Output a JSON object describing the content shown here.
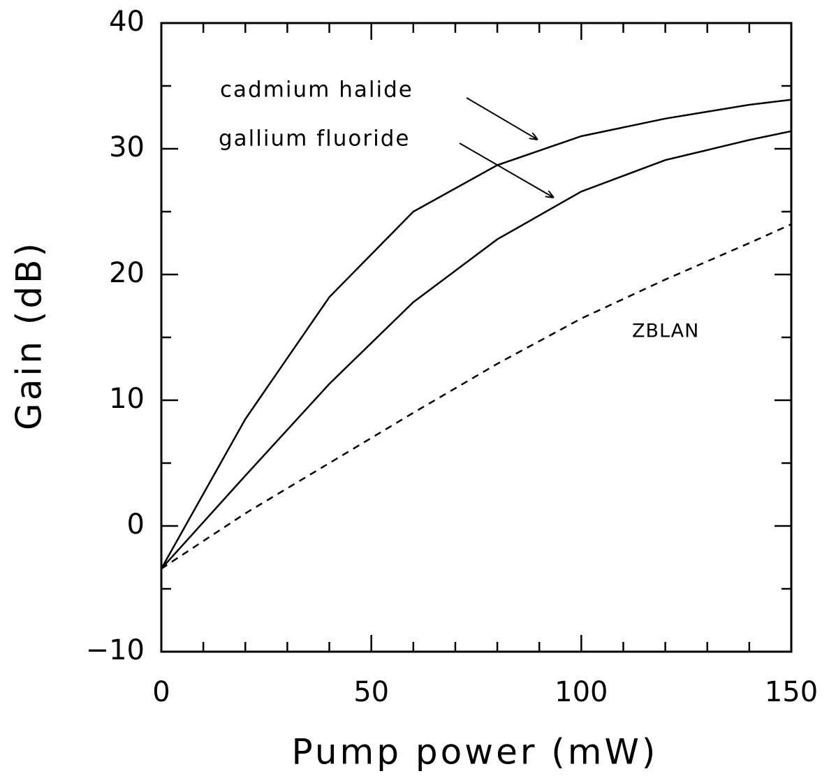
{
  "chart_data": {
    "type": "line",
    "xlabel": "Pump power (mW)",
    "ylabel": "Gain (dB)",
    "x": [
      0,
      20,
      40,
      60,
      80,
      100,
      120,
      140,
      150
    ],
    "series": [
      {
        "name": "cadmium halide",
        "color": "#000000",
        "line_style": "solid",
        "values": [
          -3.4,
          8.5,
          18.2,
          25,
          28.7,
          31,
          32.4,
          33.5,
          33.9
        ]
      },
      {
        "name": "gallium fluoride",
        "color": "#000000",
        "line_style": "solid",
        "values": [
          -3.4,
          4,
          11.3,
          17.8,
          22.8,
          26.6,
          29.1,
          30.7,
          31.4
        ]
      },
      {
        "name": "ZBLAN",
        "color": "#000000",
        "line_style": "dashed",
        "values": [
          -3.4,
          1,
          5,
          9,
          12.9,
          16.5,
          19.6,
          22.5,
          24
        ]
      }
    ],
    "xlim": [
      0,
      150
    ],
    "ylim": [
      -10,
      40
    ],
    "xticks": [
      0,
      50,
      100,
      150
    ],
    "yticks": [
      {
        "value": -10,
        "label": "−10"
      },
      0,
      10,
      20,
      30,
      40
    ],
    "minor_xticks": [
      10,
      20,
      30,
      40,
      60,
      70,
      80,
      90,
      110,
      120,
      130,
      140
    ],
    "minor_yticks": [
      -5,
      5,
      15,
      25,
      35
    ]
  }
}
